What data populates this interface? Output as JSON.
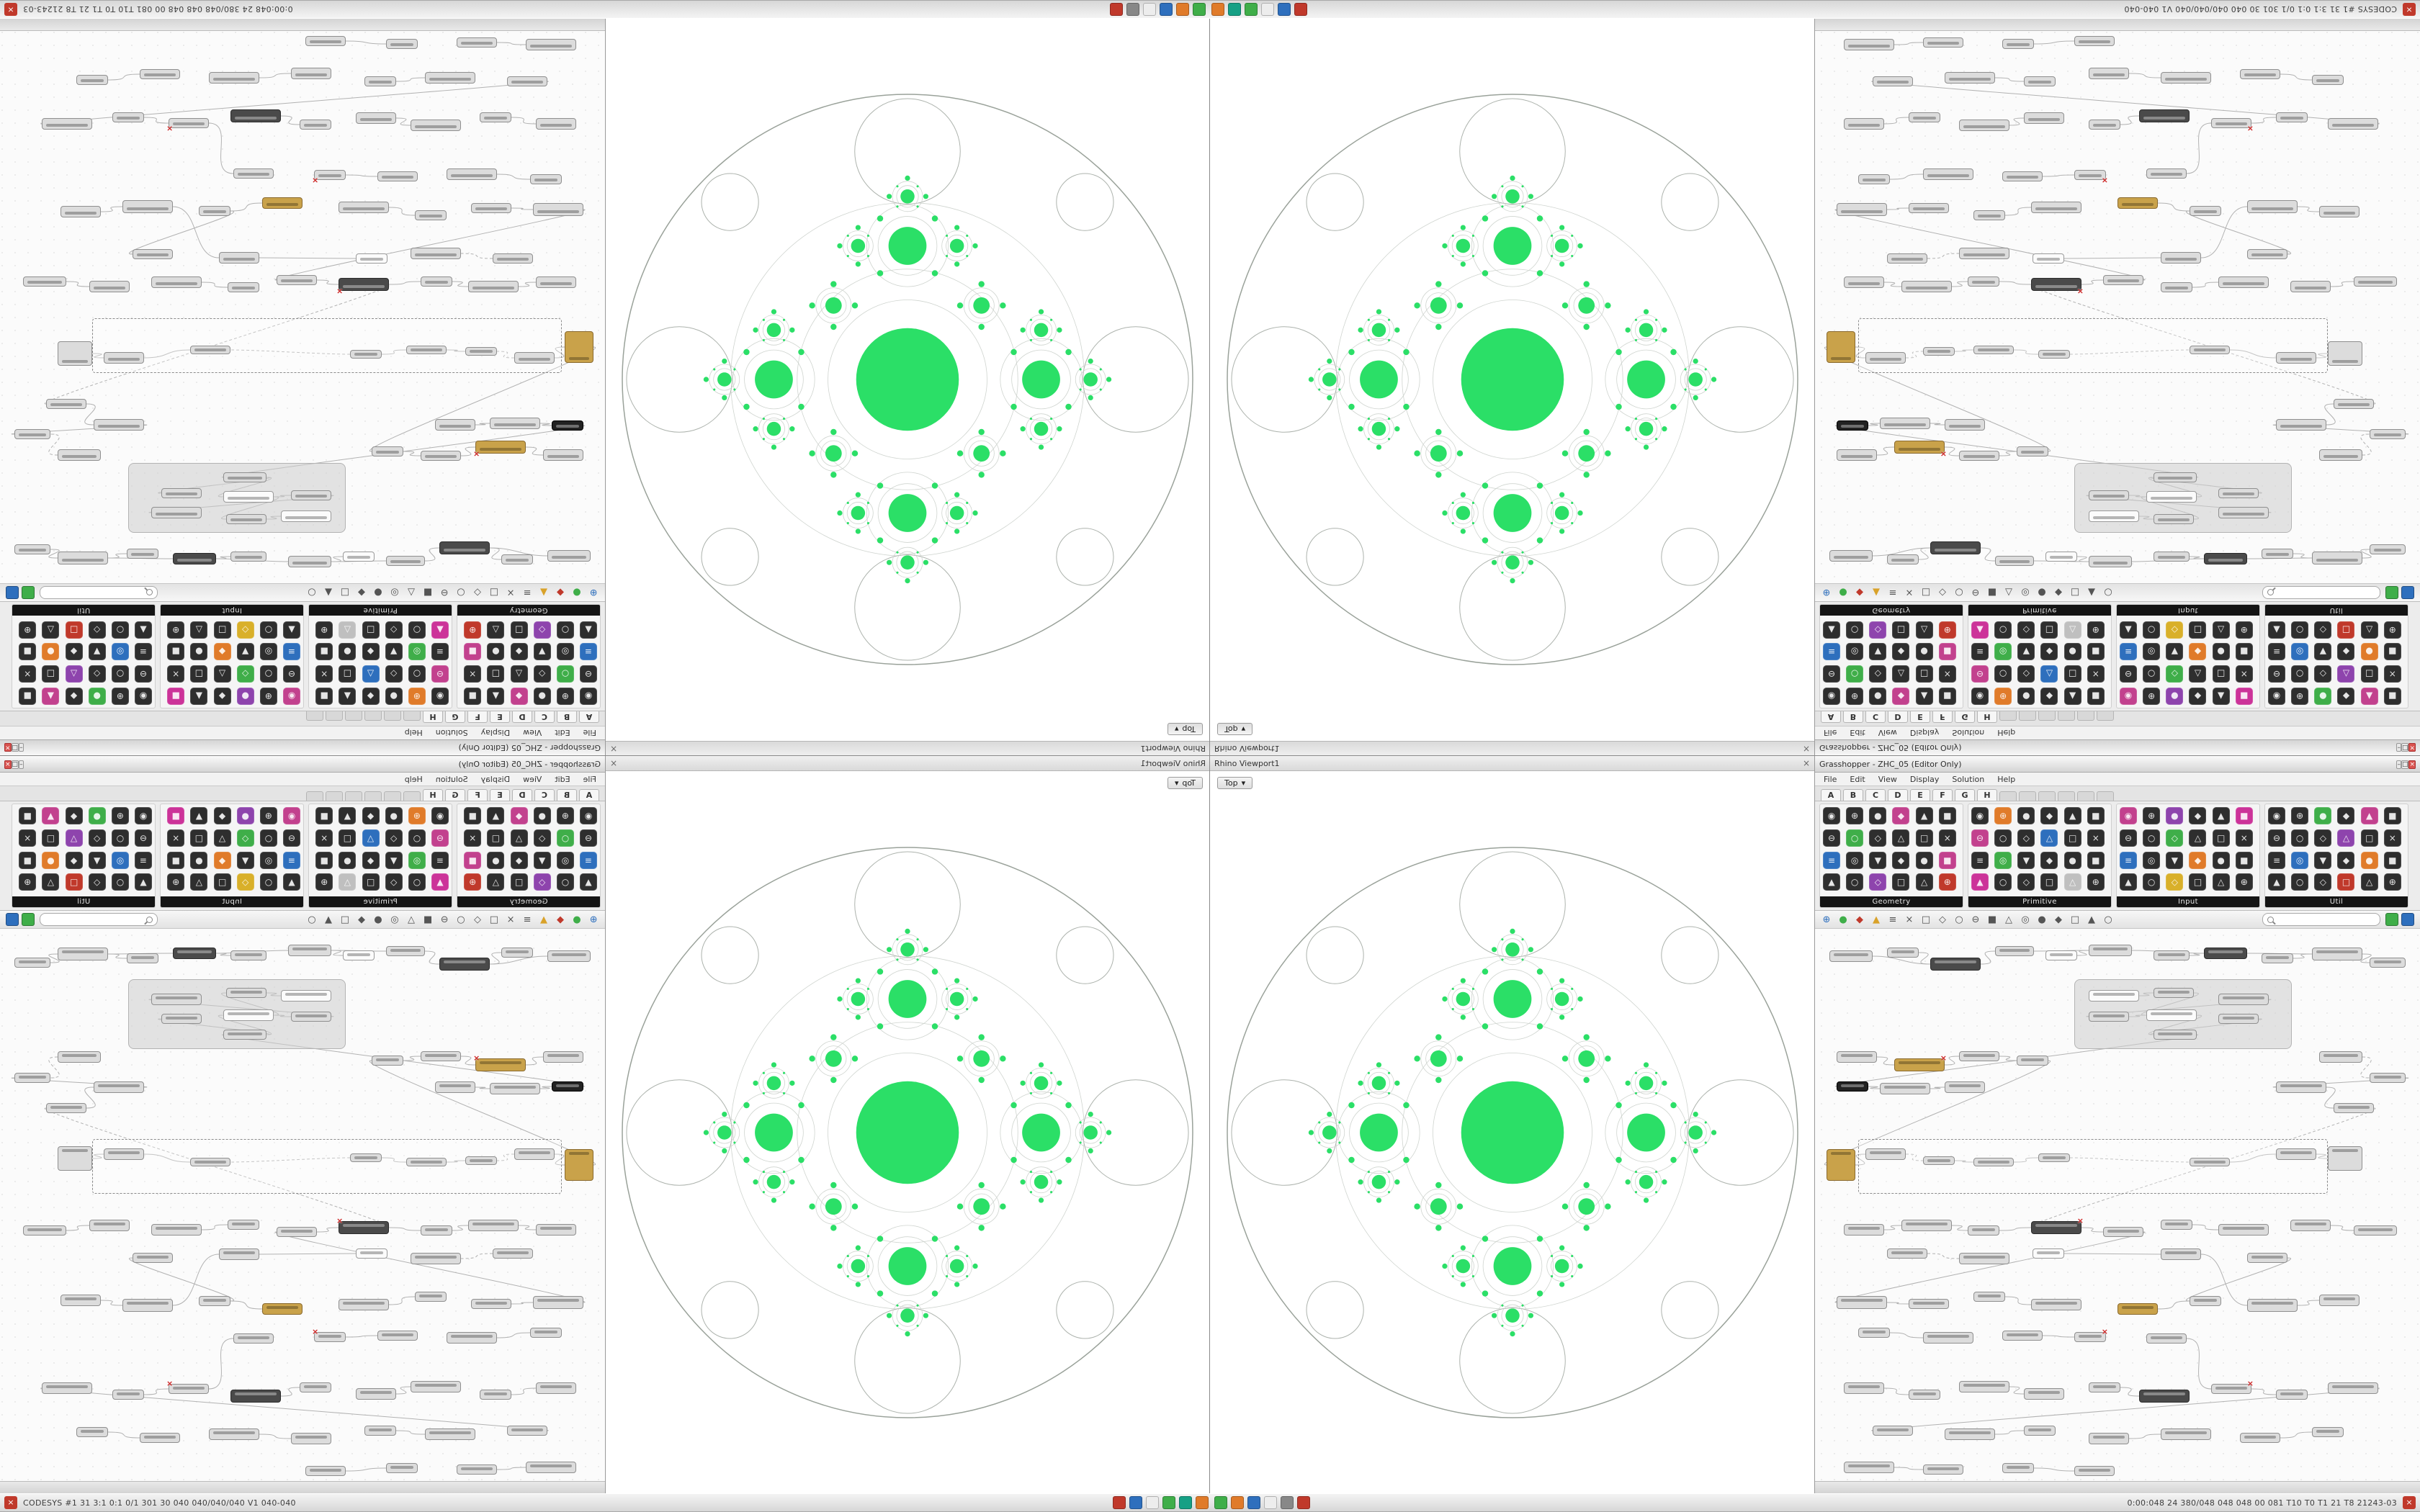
{
  "taskbar": {
    "left_text": "CODESYS #1  31  3:1  0:1  0/1  301 30  040 040/040/040  V1  040-040",
    "right_text": "0:00:048  24  380/048 048 048  00 081  T10 T0 T1 21 T8  21243-03",
    "icons_left": [
      "#c0392b",
      "#2e6fbd",
      "#ededed",
      "#3fae49",
      "#16a085",
      "#e07b2a"
    ],
    "icons_right": [
      "#3fae49",
      "#e07b2a",
      "#2e6fbd",
      "#ededed",
      "#888888",
      "#c0392b"
    ],
    "close_glyph": "×"
  },
  "gh": {
    "title": "Grasshopper - ZHC_05 (Editor Only)",
    "window_buttons": [
      "–",
      "□",
      "×"
    ],
    "menu": [
      "File",
      "Edit",
      "View",
      "Display",
      "Solution",
      "Help"
    ],
    "tabs": [
      "A",
      "B",
      "C",
      "D",
      "E",
      "F",
      "G",
      "H"
    ],
    "icon_glyphs": "◉⊕●◆▲■⊖○◇△□×≡◎▼◆●■▲○◇□△⊕",
    "icon_colors": {
      "k": "#2e2e2e",
      "p": "#c2418e",
      "g": "#3fae49",
      "b": "#2e6fbd",
      "u": "#8e44ad",
      "o": "#e07b2a",
      "m": "#cc3399",
      "y": "#d9b02a",
      "r": "#c0392b",
      "w": "#bfbfbf"
    },
    "groups": [
      {
        "label": "Geometry",
        "icons": "kkkpkkkgkkkkbkkkkpkkukkr"
      },
      {
        "label": "Primitive",
        "icons": "kokkkkpkkbkkkgkkkkmkkkwk"
      },
      {
        "label": "Input",
        "icons": "pkukkmkkgkkkbkkokkkkykkk"
      },
      {
        "label": "Util",
        "icons": "kkgkpkkkkukkkbkkokkkkrkk"
      }
    ],
    "canvas_toolbar": [
      {
        "g": "⊕",
        "c": "#2e6fbd"
      },
      {
        "g": "●",
        "c": "#3fae49"
      },
      {
        "g": "◆",
        "c": "#c0392b"
      },
      {
        "g": "▲",
        "c": "#d9a22a"
      },
      {
        "g": "≡",
        "c": "#555"
      },
      {
        "g": "×",
        "c": "#555"
      },
      {
        "g": "□",
        "c": "#555"
      },
      {
        "g": "◇",
        "c": "#555"
      },
      {
        "g": "○",
        "c": "#555"
      },
      {
        "g": "⊖",
        "c": "#555"
      },
      {
        "g": "■",
        "c": "#555"
      },
      {
        "g": "△",
        "c": "#555"
      },
      {
        "g": "◎",
        "c": "#555"
      },
      {
        "g": "●",
        "c": "#555"
      },
      {
        "g": "◆",
        "c": "#555"
      },
      {
        "g": "□",
        "c": "#555"
      },
      {
        "g": "▲",
        "c": "#555"
      },
      {
        "g": "○",
        "c": "#555"
      }
    ],
    "search_value": "",
    "search_buttons": [
      "#3fae49",
      "#2e6fbd"
    ],
    "node_colors": {
      "g": [
        "#dcdcdc",
        "#8f8f8f"
      ],
      "w": [
        "#fbfbfb",
        "#9a9a9a"
      ],
      "d": [
        "#4a4a4a",
        "#2b2b2b"
      ],
      "o": [
        "#c9a24a",
        "#8a6a2f"
      ],
      "k": [
        "#222222",
        "#000000"
      ]
    },
    "panel_group": [
      360,
      70,
      300,
      95
    ],
    "dashed_group": [
      60,
      292,
      650,
      74
    ],
    "nodes": [
      [
        20,
        30,
        60,
        16,
        "g"
      ],
      [
        100,
        26,
        44,
        14,
        "g"
      ],
      [
        160,
        40,
        70,
        18,
        "d"
      ],
      [
        250,
        24,
        54,
        14,
        "g"
      ],
      [
        320,
        30,
        44,
        14,
        "w"
      ],
      [
        380,
        22,
        60,
        16,
        "g"
      ],
      [
        470,
        30,
        50,
        14,
        "g"
      ],
      [
        540,
        26,
        60,
        16,
        "d"
      ],
      [
        620,
        34,
        44,
        14,
        "g"
      ],
      [
        690,
        26,
        70,
        18,
        "g"
      ],
      [
        770,
        40,
        50,
        14,
        "g"
      ],
      [
        380,
        85,
        70,
        16,
        "w"
      ],
      [
        470,
        82,
        56,
        14,
        "g"
      ],
      [
        560,
        90,
        70,
        16,
        "g"
      ],
      [
        380,
        115,
        56,
        14,
        "g"
      ],
      [
        460,
        112,
        70,
        16,
        "w"
      ],
      [
        560,
        118,
        56,
        14,
        "g"
      ],
      [
        470,
        140,
        60,
        14,
        "g"
      ],
      [
        30,
        170,
        56,
        16,
        "g"
      ],
      [
        110,
        180,
        70,
        18,
        "o"
      ],
      [
        200,
        170,
        56,
        14,
        "g"
      ],
      [
        280,
        176,
        44,
        14,
        "g"
      ],
      [
        30,
        212,
        44,
        14,
        "k"
      ],
      [
        90,
        214,
        70,
        16,
        "g"
      ],
      [
        180,
        212,
        56,
        16,
        "g"
      ],
      [
        700,
        170,
        60,
        16,
        "g"
      ],
      [
        770,
        200,
        50,
        14,
        "g"
      ],
      [
        640,
        212,
        70,
        16,
        "g"
      ],
      [
        720,
        242,
        56,
        14,
        "g"
      ],
      [
        16,
        306,
        40,
        44,
        "o"
      ],
      [
        70,
        305,
        56,
        16,
        "g"
      ],
      [
        640,
        305,
        56,
        16,
        "g"
      ],
      [
        712,
        302,
        48,
        34,
        "g"
      ],
      [
        150,
        316,
        44,
        12,
        "g"
      ],
      [
        220,
        318,
        56,
        12,
        "g"
      ],
      [
        310,
        312,
        44,
        12,
        "g"
      ],
      [
        520,
        318,
        56,
        12,
        "g"
      ],
      [
        40,
        410,
        56,
        16,
        "g"
      ],
      [
        120,
        404,
        70,
        16,
        "g"
      ],
      [
        212,
        412,
        44,
        14,
        "g"
      ],
      [
        300,
        406,
        70,
        18,
        "d"
      ],
      [
        400,
        414,
        56,
        14,
        "g"
      ],
      [
        480,
        404,
        44,
        14,
        "g"
      ],
      [
        560,
        410,
        70,
        16,
        "g"
      ],
      [
        660,
        404,
        56,
        16,
        "g"
      ],
      [
        748,
        412,
        60,
        14,
        "g"
      ],
      [
        100,
        444,
        56,
        14,
        "g"
      ],
      [
        200,
        450,
        70,
        16,
        "g"
      ],
      [
        302,
        444,
        44,
        14,
        "w"
      ],
      [
        480,
        444,
        56,
        16,
        "g"
      ],
      [
        600,
        450,
        56,
        14,
        "g"
      ],
      [
        30,
        510,
        70,
        18,
        "g"
      ],
      [
        130,
        514,
        56,
        14,
        "g"
      ],
      [
        220,
        504,
        44,
        14,
        "g"
      ],
      [
        300,
        514,
        70,
        16,
        "g"
      ],
      [
        420,
        520,
        56,
        16,
        "o"
      ],
      [
        520,
        510,
        44,
        14,
        "g"
      ],
      [
        600,
        514,
        70,
        18,
        "g"
      ],
      [
        700,
        508,
        56,
        16,
        "g"
      ],
      [
        60,
        554,
        44,
        14,
        "g"
      ],
      [
        150,
        560,
        70,
        16,
        "g"
      ],
      [
        260,
        558,
        56,
        14,
        "g"
      ],
      [
        360,
        560,
        44,
        14,
        "g"
      ],
      [
        460,
        562,
        56,
        14,
        "g"
      ],
      [
        40,
        630,
        56,
        16,
        "g"
      ],
      [
        130,
        640,
        44,
        14,
        "g"
      ],
      [
        200,
        628,
        70,
        16,
        "g"
      ],
      [
        290,
        638,
        56,
        16,
        "g"
      ],
      [
        380,
        630,
        44,
        14,
        "g"
      ],
      [
        450,
        640,
        70,
        18,
        "d"
      ],
      [
        550,
        632,
        56,
        14,
        "g"
      ],
      [
        640,
        640,
        44,
        14,
        "g"
      ],
      [
        712,
        630,
        70,
        16,
        "g"
      ],
      [
        80,
        690,
        56,
        14,
        "g"
      ],
      [
        180,
        694,
        70,
        16,
        "g"
      ],
      [
        290,
        690,
        44,
        14,
        "g"
      ],
      [
        380,
        700,
        56,
        16,
        "g"
      ],
      [
        480,
        694,
        70,
        16,
        "g"
      ],
      [
        590,
        700,
        56,
        14,
        "g"
      ],
      [
        690,
        692,
        44,
        14,
        "g"
      ],
      [
        40,
        740,
        70,
        16,
        "g"
      ],
      [
        150,
        744,
        56,
        14,
        "g"
      ],
      [
        260,
        742,
        44,
        14,
        "g"
      ],
      [
        360,
        746,
        56,
        14,
        "g"
      ]
    ],
    "red_x_nodes": [
      19,
      40,
      62,
      70
    ],
    "wires": [
      [
        0,
        2,
        0
      ],
      [
        1,
        2,
        0
      ],
      [
        2,
        3,
        0
      ],
      [
        3,
        5,
        0
      ],
      [
        4,
        5,
        0
      ],
      [
        5,
        7,
        0
      ],
      [
        6,
        7,
        0
      ],
      [
        7,
        9,
        0
      ],
      [
        8,
        9,
        0
      ],
      [
        9,
        10,
        0
      ],
      [
        11,
        12,
        0
      ],
      [
        12,
        15,
        0
      ],
      [
        13,
        14,
        0
      ],
      [
        14,
        15,
        0
      ],
      [
        15,
        17,
        0
      ],
      [
        16,
        17,
        0
      ],
      [
        18,
        19,
        0
      ],
      [
        19,
        20,
        0
      ],
      [
        20,
        21,
        0
      ],
      [
        22,
        23,
        0
      ],
      [
        23,
        24,
        0
      ],
      [
        25,
        26,
        1
      ],
      [
        26,
        27,
        0
      ],
      [
        27,
        28,
        0
      ],
      [
        29,
        30,
        0
      ],
      [
        30,
        33,
        1
      ],
      [
        33,
        34,
        0
      ],
      [
        34,
        35,
        0
      ],
      [
        35,
        36,
        1
      ],
      [
        36,
        31,
        0
      ],
      [
        31,
        32,
        0
      ],
      [
        37,
        38,
        0
      ],
      [
        38,
        39,
        0
      ],
      [
        39,
        40,
        0
      ],
      [
        40,
        41,
        0
      ],
      [
        42,
        43,
        0
      ],
      [
        44,
        45,
        0
      ],
      [
        46,
        47,
        1
      ],
      [
        48,
        49,
        0
      ],
      [
        51,
        52,
        0
      ],
      [
        53,
        54,
        0
      ],
      [
        55,
        56,
        0
      ],
      [
        57,
        58,
        0
      ],
      [
        59,
        60,
        0
      ],
      [
        61,
        62,
        0
      ],
      [
        64,
        65,
        0
      ],
      [
        66,
        67,
        0
      ],
      [
        68,
        69,
        0
      ],
      [
        70,
        71,
        0
      ],
      [
        72,
        73,
        0
      ],
      [
        74,
        75,
        0
      ],
      [
        76,
        77,
        0
      ],
      [
        78,
        79,
        0
      ],
      [
        80,
        81,
        0
      ],
      [
        82,
        83,
        0
      ],
      [
        50,
        56,
        0
      ],
      [
        28,
        40,
        1
      ],
      [
        17,
        22,
        0
      ],
      [
        21,
        29,
        0
      ],
      [
        41,
        51,
        0
      ],
      [
        49,
        57,
        0
      ],
      [
        63,
        70,
        0
      ]
    ]
  },
  "viewport": {
    "title": "Rhino Viewport1",
    "close_glyph": "×",
    "view_label": "Top",
    "dropdown_glyph": "▾",
    "fractal": {
      "green": "#2bdf67",
      "lace_stroke": "#cfd4cf",
      "outer_stroke": "#9aa29a",
      "rim_fill": "#ffffff",
      "rim_stroke": "#adb3ad",
      "R": 396,
      "center_ratio": 0.18,
      "child_ratio": 0.37,
      "diag_ratio": 0.16,
      "depth": 4,
      "rim_circle_ratio": 0.185,
      "rim_dist": 0.8,
      "diag_rim_ratio": 0.1,
      "diag_rim_dist": 0.88
    }
  },
  "quadrants": [
    {
      "name": "quadrant-top-left",
      "flip": "fxy"
    },
    {
      "name": "quadrant-top-right",
      "flip": "fy"
    },
    {
      "name": "quadrant-bottom-left",
      "flip": "fx"
    },
    {
      "name": "quadrant-bottom-right",
      "flip": ""
    }
  ]
}
